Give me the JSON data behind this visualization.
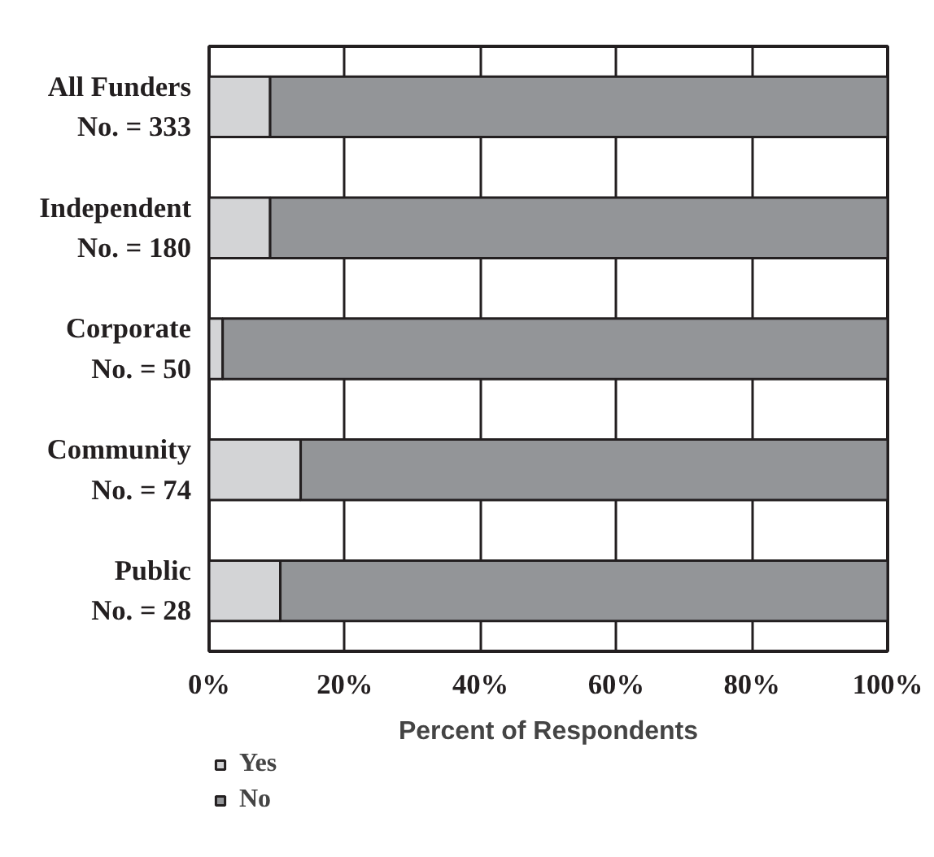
{
  "chart_data": {
    "type": "bar",
    "orientation": "horizontal",
    "stacked": true,
    "categories": [
      "All Funders\nNo. = 333",
      "Independent\nNo. = 180",
      "Corporate\nNo. = 50",
      "Community\nNo. = 74",
      "Public\nNo. = 28"
    ],
    "series": [
      {
        "name": "Yes",
        "color": "#d3d4d6",
        "values": [
          9,
          9,
          2,
          13.5,
          10.5
        ]
      },
      {
        "name": "No",
        "color": "#939598",
        "values": [
          91,
          91,
          98,
          86.5,
          89.5
        ]
      }
    ],
    "xlabel": "Percent of Respondents",
    "xlim": [
      0,
      100
    ],
    "xticks": [
      {
        "value": 0,
        "label": "0%"
      },
      {
        "value": 20,
        "label": "20%"
      },
      {
        "value": 40,
        "label": "40%"
      },
      {
        "value": 60,
        "label": "60%"
      },
      {
        "value": 80,
        "label": "80%"
      },
      {
        "value": 100,
        "label": "100%"
      }
    ],
    "grid": "x",
    "legend": "bottom left"
  }
}
